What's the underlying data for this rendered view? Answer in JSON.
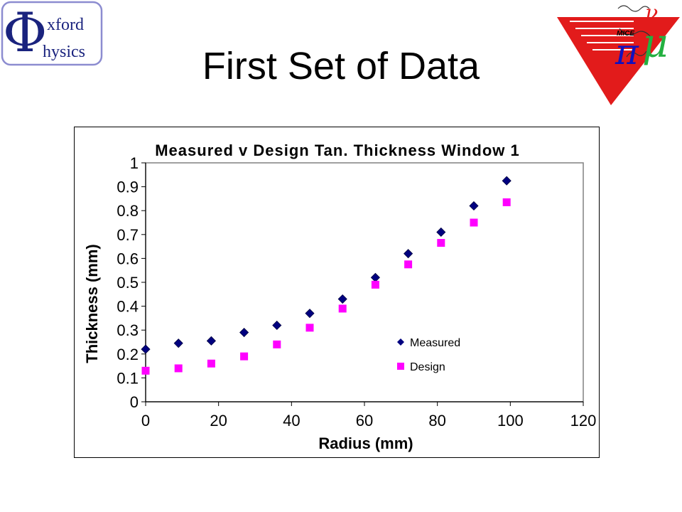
{
  "slide": {
    "title": "First Set of Data",
    "logo_left": {
      "phi": "Φ",
      "line1": "xford",
      "line2": "hysics"
    }
  },
  "chart_data": {
    "type": "scatter",
    "title": "Measured v Design Tan. Thickness Window 1",
    "xlabel": "Radius (mm)",
    "ylabel": "Thickness (mm)",
    "xlim": [
      0,
      120
    ],
    "ylim": [
      0,
      1
    ],
    "xticks": [
      0,
      20,
      40,
      60,
      80,
      100,
      120
    ],
    "yticks": [
      0,
      0.1,
      0.2,
      0.3,
      0.4,
      0.5,
      0.6,
      0.7,
      0.8,
      0.9,
      1
    ],
    "legend_position": "right-inside",
    "grid": {
      "horizontal": false,
      "vertical": false
    },
    "series": [
      {
        "name": "Measured",
        "marker": "diamond",
        "color": "#000080",
        "x": [
          0,
          9,
          18,
          27,
          36,
          45,
          54,
          63,
          72,
          81,
          90,
          99
        ],
        "y": [
          0.22,
          0.245,
          0.255,
          0.29,
          0.32,
          0.37,
          0.43,
          0.52,
          0.62,
          0.71,
          0.82,
          0.925
        ]
      },
      {
        "name": "Design",
        "marker": "square",
        "color": "#ff00ff",
        "x": [
          0,
          9,
          18,
          27,
          36,
          45,
          54,
          63,
          72,
          81,
          90,
          99
        ],
        "y": [
          0.13,
          0.14,
          0.16,
          0.19,
          0.24,
          0.31,
          0.39,
          0.49,
          0.575,
          0.665,
          0.75,
          0.835
        ]
      }
    ]
  }
}
